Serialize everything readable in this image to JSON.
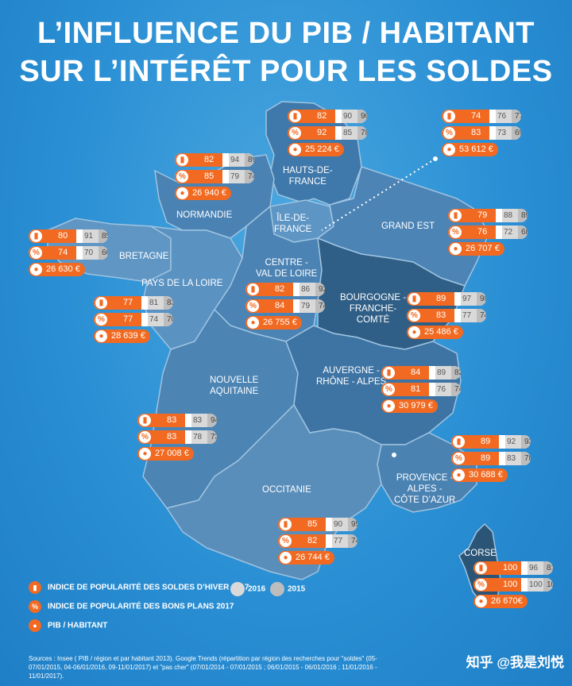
{
  "title_line1": "L’INFLUENCE DU PIB / HABITANT",
  "title_line2": "SUR L’INTÉRÊT POUR LES SOLDES",
  "colors": {
    "orange": "#f26a21",
    "sea": "#2a8fd4",
    "region_mid": "#4d82b0",
    "region_dark": "#2f5f86",
    "gray_2016": "#d9d9d9",
    "gray_2015": "#bdbdbd"
  },
  "regions": [
    {
      "id": "hdf",
      "name": "HAUTS-DE-\nFRANCE",
      "hiver": 82,
      "h16": 90,
      "h15": 90,
      "bons": 92,
      "b16": 85,
      "b15": 78,
      "pib": "25 224 €"
    },
    {
      "id": "normandie",
      "name": "NORMANDIE",
      "hiver": 82,
      "h16": 94,
      "h15": 89,
      "bons": 85,
      "b16": 79,
      "b15": 74,
      "pib": "26 940 €"
    },
    {
      "id": "idf",
      "name": "ÎLE-DE-\nFRANCE",
      "hiver": 74,
      "h16": 76,
      "h15": 77,
      "bons": 83,
      "b16": 73,
      "b15": 69,
      "pib": "53 612 €"
    },
    {
      "id": "grandest",
      "name": "GRAND EST",
      "hiver": 79,
      "h16": 88,
      "h15": 89,
      "bons": 76,
      "b16": 72,
      "b15": 68,
      "pib": "26 707 €"
    },
    {
      "id": "bretagne",
      "name": "BRETAGNE",
      "hiver": 80,
      "h16": 91,
      "h15": 85,
      "bons": 74,
      "b16": 70,
      "b15": 66,
      "pib": "26 630 €"
    },
    {
      "id": "pdl",
      "name": "PAYS DE LA LOIRE",
      "hiver": 77,
      "h16": 81,
      "h15": 83,
      "bons": 77,
      "b16": 74,
      "b15": 70,
      "pib": "28 639 €"
    },
    {
      "id": "cvl",
      "name": "CENTRE -\nVAL DE LOIRE",
      "hiver": 82,
      "h16": 86,
      "h15": 92,
      "bons": 84,
      "b16": 79,
      "b15": 74,
      "pib": "26 755 €"
    },
    {
      "id": "bfc",
      "name": "BOURGOGNE -\nFRANCHE-\nCOMTÉ",
      "hiver": 89,
      "h16": 97,
      "h15": 98,
      "bons": 83,
      "b16": 77,
      "b15": 74,
      "pib": "25 486 €"
    },
    {
      "id": "ara",
      "name": "AUVERGNE -\nRHÔNE - ALPES",
      "hiver": 84,
      "h16": 89,
      "h15": 82,
      "bons": 81,
      "b16": 76,
      "b15": 74,
      "pib": "30 979 €"
    },
    {
      "id": "na",
      "name": "NOUVELLE\nAQUITAINE",
      "hiver": 83,
      "h16": 83,
      "h15": 94,
      "bons": 83,
      "b16": 78,
      "b15": 73,
      "pib": "27 008 €"
    },
    {
      "id": "paca",
      "name": "PROVENCE -\nALPES -\nCÔTE D’AZUR",
      "hiver": 89,
      "h16": 92,
      "h15": 93,
      "bons": 89,
      "b16": 83,
      "b15": 78,
      "pib": "30 688 €"
    },
    {
      "id": "occitanie",
      "name": "OCCITANIE",
      "hiver": 85,
      "h16": 90,
      "h15": 95,
      "bons": 82,
      "b16": 77,
      "b15": 74,
      "pib": "26 744 €"
    },
    {
      "id": "corse",
      "name": "CORSE",
      "hiver": 100,
      "h16": 96,
      "h15": 81,
      "bons": 100,
      "b16": 100,
      "b15": 100,
      "pib": "26 670€"
    }
  ],
  "legend": {
    "hiver": "INDICE DE POPULARITÉ DES SOLDES D’HIVER 2017",
    "bons": "INDICE DE POPULARITÉ DES BONS PLANS 2017",
    "pib": "PIB / HABITANT",
    "y2016": "2016",
    "y2015": "2015"
  },
  "sources": "Sources : Insee ( PIB / région et par habitant 2013). Google Trends (répartition par région des recherches pour \"soldes\" (05-07/01/2015, 04-06/01/2016, 09-11/01/2017) et \"pas cher\" (07/01/2014 - 07/01/2015 ; 06/01/2015 - 06/01/2016 ; 11/01/2016 - 11/01/2017).",
  "brand": "知乎 @我是刘悦",
  "icons": {
    "hiver": "tag-icon",
    "bons": "percent-icon",
    "pib": "person-icon"
  }
}
